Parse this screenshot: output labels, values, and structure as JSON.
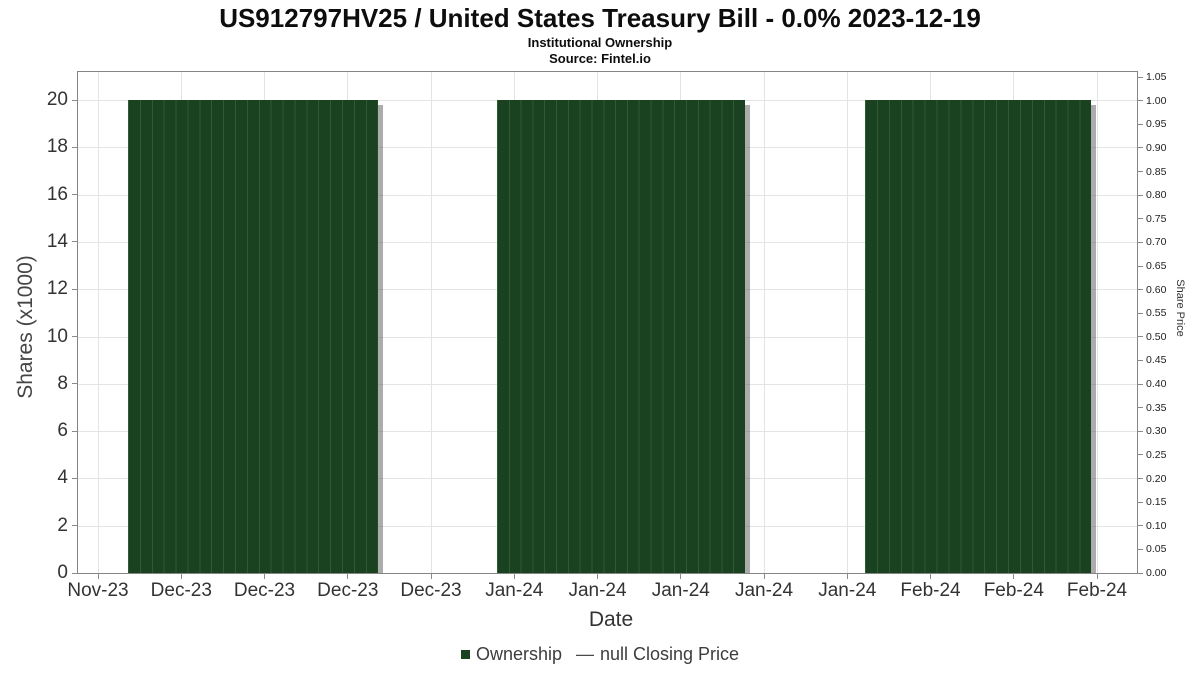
{
  "header": {
    "title": "US912797HV25 / United States Treasury Bill - 0.0% 2023-12-19",
    "subtitle": "Institutional Ownership",
    "source": "Source: Fintel.io"
  },
  "chart_data": {
    "type": "bar",
    "title": "US912797HV25 / United States Treasury Bill - 0.0% 2023-12-19",
    "subtitle": "Institutional Ownership",
    "source": "Source: Fintel.io",
    "xlabel": "Date",
    "ylabel_left": "Shares (x1000)",
    "ylabel_right": "Share Price",
    "x_tick_labels": [
      "Nov-23",
      "Dec-23",
      "Dec-23",
      "Dec-23",
      "Dec-23",
      "Jan-24",
      "Jan-24",
      "Jan-24",
      "Jan-24",
      "Jan-24",
      "Feb-24",
      "Feb-24",
      "Feb-24"
    ],
    "y_left_ticks": [
      "0",
      "2",
      "4",
      "6",
      "8",
      "10",
      "12",
      "14",
      "16",
      "18",
      "20"
    ],
    "y_left_range": [
      0,
      21.2
    ],
    "y_right_ticks": [
      "0.00",
      "0.05",
      "0.10",
      "0.15",
      "0.20",
      "0.25",
      "0.30",
      "0.35",
      "0.40",
      "0.45",
      "0.50",
      "0.55",
      "0.60",
      "0.65",
      "0.70",
      "0.75",
      "0.80",
      "0.85",
      "0.90",
      "0.95",
      "1.00",
      "1.05"
    ],
    "y_right_range": [
      0,
      1.114
    ],
    "grid": true,
    "legend_position": "bottom",
    "series": [
      {
        "name": "Ownership",
        "type": "bar",
        "color": "#1a4221",
        "bar_value": 20,
        "segments": [
          {
            "start_tick": 0.36,
            "end_tick": 3.36,
            "bar_count": 21,
            "value": 20
          },
          {
            "start_tick": 4.79,
            "end_tick": 7.77,
            "bar_count": 21,
            "value": 20
          },
          {
            "start_tick": 9.21,
            "end_tick": 11.93,
            "bar_count": 19,
            "value": 20
          }
        ]
      },
      {
        "name": "null Closing Price",
        "type": "line",
        "values": []
      }
    ],
    "colors": {
      "bar_fill": "#1a4221",
      "bar_separator": "#2e5a34",
      "bar_shadow": "rgba(90,90,90,0.5)",
      "gridline": "#e4e4e4",
      "axis_border": "#848484",
      "tick_mark": "#8a8a8a",
      "tick_text": "#333333"
    }
  },
  "legend": {
    "ownership_label": "Ownership",
    "line_marker": "—",
    "price_label": "null Closing Price"
  }
}
